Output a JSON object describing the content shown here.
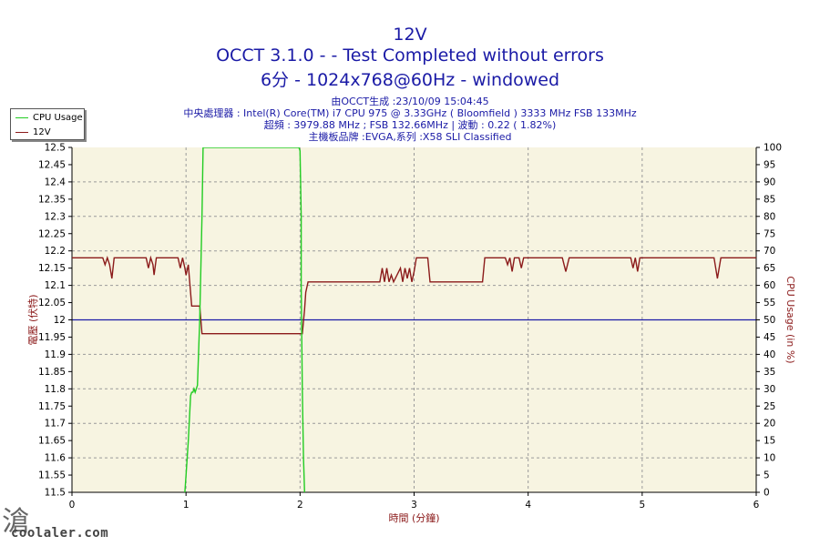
{
  "titles": {
    "line1": "12V",
    "line2": "OCCT 3.1.0 -  - Test Completed without errors",
    "line3": "6分 - 1024x768@60Hz - windowed"
  },
  "info": {
    "line1": "由OCCT生成 :23/10/09 15:04:45",
    "line2": "中央處理器 : Intel(R) Core(TM) i7 CPU 975 @ 3.33GHz ( Bloomfield ) 3333 MHz FSB 133MHz",
    "line3": "超頻 : 3979.88 MHz ; FSB 132.66MHz | 波動 : 0.22 ( 1.82%)",
    "line4": "主機板品牌 :EVGA,系列 :X58 SLI Classified"
  },
  "legend": {
    "items": [
      {
        "label": "CPU Usage",
        "color": "#22cc22"
      },
      {
        "label": "12V",
        "color": "#8b1a1a"
      }
    ]
  },
  "watermark": {
    "text": "coolaler.com",
    "glyph": "滄"
  },
  "chart_data": {
    "type": "line",
    "xlabel": "時間 (分鐘)",
    "ylabel_left": "電壓 (伏特)",
    "ylabel_right": "CPU Usage (in %)",
    "xlim": [
      0,
      6
    ],
    "ylim_left": [
      11.5,
      12.5
    ],
    "ylim_right": [
      0,
      100
    ],
    "x_ticks": [
      "0",
      "1",
      "2",
      "3",
      "4",
      "5",
      "6"
    ],
    "y_ticks_left": [
      "11.5",
      "11.55",
      "11.6",
      "11.65",
      "11.7",
      "11.75",
      "11.8",
      "11.85",
      "11.9",
      "11.95",
      "12",
      "12.05",
      "12.1",
      "12.15",
      "12.2",
      "12.25",
      "12.3",
      "12.35",
      "12.4",
      "12.45",
      "12.5"
    ],
    "y_ticks_right": [
      "0",
      "5",
      "10",
      "15",
      "20",
      "25",
      "30",
      "35",
      "40",
      "45",
      "50",
      "55",
      "60",
      "65",
      "70",
      "75",
      "80",
      "85",
      "90",
      "95",
      "100"
    ],
    "reference_line": {
      "value": 12.0,
      "color": "#1a1aa6"
    },
    "grid": true,
    "legend_position": "top-left",
    "colors": {
      "plot_bg": "#f7f4e1",
      "grid": "#9a9a9a",
      "axis_text": "#8b1a1a",
      "title": "#1a1aa6"
    },
    "series": [
      {
        "name": "12V",
        "axis": "left",
        "color": "#8b1a1a",
        "points": [
          [
            0,
            12.18
          ],
          [
            0.27,
            12.18
          ],
          [
            0.29,
            12.16
          ],
          [
            0.31,
            12.18
          ],
          [
            0.33,
            12.16
          ],
          [
            0.35,
            12.12
          ],
          [
            0.37,
            12.18
          ],
          [
            0.65,
            12.18
          ],
          [
            0.67,
            12.15
          ],
          [
            0.69,
            12.18
          ],
          [
            0.71,
            12.16
          ],
          [
            0.72,
            12.13
          ],
          [
            0.74,
            12.18
          ],
          [
            0.93,
            12.18
          ],
          [
            0.95,
            12.15
          ],
          [
            0.97,
            12.18
          ],
          [
            0.99,
            12.15
          ],
          [
            1.0,
            12.13
          ],
          [
            1.02,
            12.16
          ],
          [
            1.03,
            12.12
          ],
          [
            1.05,
            12.04
          ],
          [
            1.12,
            12.04
          ],
          [
            1.14,
            11.96
          ],
          [
            2.02,
            11.96
          ],
          [
            2.04,
            12.03
          ],
          [
            2.05,
            12.08
          ],
          [
            2.07,
            12.11
          ],
          [
            2.7,
            12.11
          ],
          [
            2.72,
            12.15
          ],
          [
            2.74,
            12.11
          ],
          [
            2.76,
            12.15
          ],
          [
            2.78,
            12.11
          ],
          [
            2.8,
            12.13
          ],
          [
            2.82,
            12.11
          ],
          [
            2.88,
            12.15
          ],
          [
            2.9,
            12.11
          ],
          [
            2.92,
            12.15
          ],
          [
            2.94,
            12.12
          ],
          [
            2.96,
            12.15
          ],
          [
            2.98,
            12.11
          ],
          [
            3.0,
            12.14
          ],
          [
            3.02,
            12.18
          ],
          [
            3.12,
            12.18
          ],
          [
            3.14,
            12.11
          ],
          [
            3.6,
            12.11
          ],
          [
            3.62,
            12.18
          ],
          [
            3.8,
            12.18
          ],
          [
            3.82,
            12.16
          ],
          [
            3.84,
            12.18
          ],
          [
            3.86,
            12.14
          ],
          [
            3.88,
            12.18
          ],
          [
            3.92,
            12.18
          ],
          [
            3.94,
            12.15
          ],
          [
            3.96,
            12.18
          ],
          [
            4.3,
            12.18
          ],
          [
            4.33,
            12.14
          ],
          [
            4.36,
            12.18
          ],
          [
            4.9,
            12.18
          ],
          [
            4.92,
            12.15
          ],
          [
            4.94,
            12.18
          ],
          [
            4.96,
            12.14
          ],
          [
            4.98,
            12.18
          ],
          [
            5.63,
            12.18
          ],
          [
            5.66,
            12.12
          ],
          [
            5.69,
            12.18
          ],
          [
            6.0,
            12.18
          ]
        ]
      },
      {
        "name": "CPU Usage",
        "axis": "right",
        "color": "#22cc22",
        "points": [
          [
            0.99,
            0
          ],
          [
            1.0,
            5
          ],
          [
            1.02,
            15
          ],
          [
            1.04,
            28
          ],
          [
            1.05,
            29
          ],
          [
            1.06,
            29
          ],
          [
            1.07,
            30
          ],
          [
            1.08,
            29
          ],
          [
            1.09,
            30
          ],
          [
            1.1,
            31
          ],
          [
            1.12,
            50
          ],
          [
            1.14,
            80
          ],
          [
            1.15,
            100
          ],
          [
            1.99,
            100
          ],
          [
            2.0,
            99
          ],
          [
            2.01,
            80
          ],
          [
            2.01,
            60
          ],
          [
            2.02,
            30
          ],
          [
            2.03,
            10
          ],
          [
            2.04,
            0
          ]
        ]
      }
    ]
  }
}
